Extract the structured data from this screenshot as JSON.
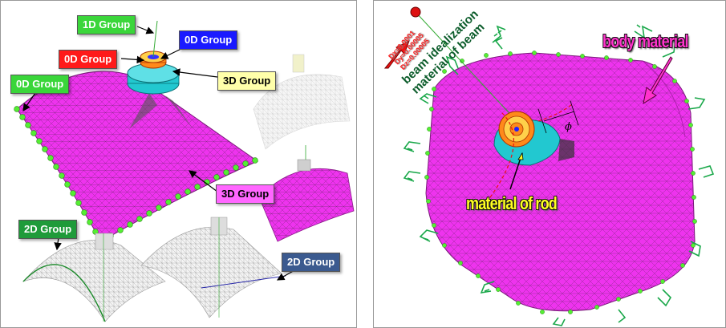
{
  "left_panel": {
    "labels": {
      "group_1d": "1D Group",
      "group_0d_top": "0D Group",
      "group_0d_red": "0D Group",
      "group_0d_left": "0D Group",
      "group_3d_top": "3D Group",
      "group_3d_body": "3D Group",
      "group_2d_left": "2D Group",
      "group_2d_right": "2D Group"
    }
  },
  "right_panel": {
    "labels": {
      "body_material": "body material",
      "material_of_rod": "material of rod",
      "beam_idealization": "beam idealization",
      "material_of_beam": "material of beam",
      "dx": "Dx=0.0001",
      "dy": "Dy=0.00005",
      "dz": "Dz=0.00005",
      "phi": "ϕ"
    }
  },
  "colors": {
    "shell_magenta": "#ee33ee",
    "node_green": "#55ee33",
    "flange_cyan": "#22c8d0",
    "rod_orange": "#ff8a1a",
    "arrow_red": "#ee1111",
    "constraint_green": "#1aa84a"
  }
}
